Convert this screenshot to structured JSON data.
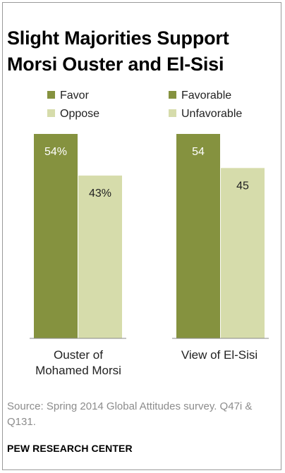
{
  "title": "Slight Majorities Support Morsi Ouster and El-Sisi",
  "source": "Source: Spring 2014 Global Attitudes survey. Q47i & Q131.",
  "footer": "PEW RESEARCH CENTER",
  "colors": {
    "positive": "#85923f",
    "negative": "#d6dcab",
    "baseline": "#8a8a8a",
    "label_on_dark": "#ffffff",
    "label_on_light": "#222222"
  },
  "chart_data": [
    {
      "type": "bar",
      "category": "Ouster of Mohamed Morsi",
      "category_lines": [
        "Ouster of",
        "Mohamed Morsi"
      ],
      "legend": [
        "Favor",
        "Oppose"
      ],
      "series": [
        {
          "name": "Favor",
          "value": 54,
          "label": "54%"
        },
        {
          "name": "Oppose",
          "value": 43,
          "label": "43%"
        }
      ],
      "ylim": [
        0,
        54
      ]
    },
    {
      "type": "bar",
      "category": "View of El-Sisi",
      "category_lines": [
        "View of El-Sisi"
      ],
      "legend": [
        "Favorable",
        "Unfavorable"
      ],
      "series": [
        {
          "name": "Favorable",
          "value": 54,
          "label": "54"
        },
        {
          "name": "Unfavorable",
          "value": 45,
          "label": "45"
        }
      ],
      "ylim": [
        0,
        54
      ]
    }
  ]
}
